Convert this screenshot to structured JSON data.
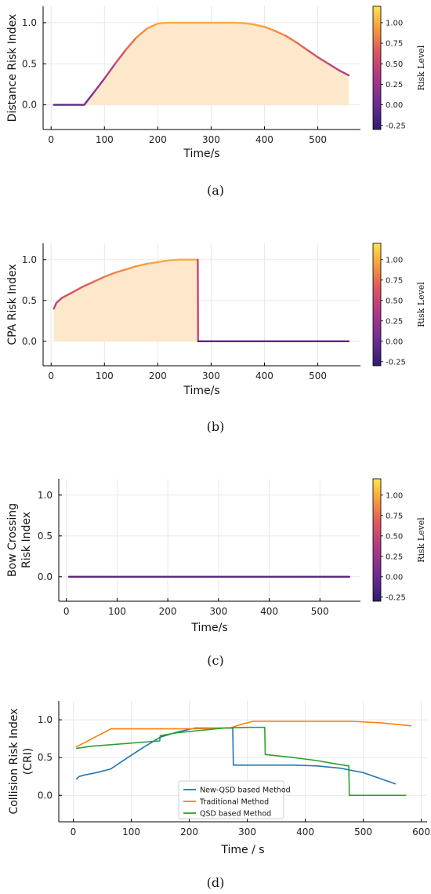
{
  "colors": {
    "fill_area": "#fde8cc",
    "new_qsd": "#1f77b4",
    "traditional": "#ff7f0e",
    "qsd": "#2ca02c",
    "flat_line": "#5b2a86",
    "colorbar": [
      "#2c1d6e",
      "#6a2c91",
      "#b23a86",
      "#e05a5a",
      "#f79a3d",
      "#fde44b"
    ]
  },
  "chart_data": [
    {
      "type": "line",
      "caption": "(a)",
      "ylabel": "Distance Risk Index",
      "xlabel": "Time/s",
      "x_ticks": [
        "0",
        "100",
        "200",
        "300",
        "400",
        "500"
      ],
      "y_ticks": [
        "0.0",
        "0.5",
        "1.0"
      ],
      "xlim": [
        -15,
        580
      ],
      "ylim": [
        -0.3,
        1.2
      ],
      "grid": true,
      "fill_under": true,
      "colorbar": {
        "label": "Risk Level",
        "ticks": [
          "1.00",
          "0.75",
          "0.50",
          "0.25",
          "0.00",
          "-0.25"
        ],
        "range": [
          -0.3,
          1.2
        ]
      },
      "x": [
        5,
        62,
        80,
        100,
        120,
        140,
        160,
        180,
        200,
        220,
        240,
        260,
        280,
        300,
        320,
        340,
        360,
        380,
        400,
        420,
        440,
        460,
        480,
        500,
        520,
        540,
        558
      ],
      "y": [
        0.0,
        0.0,
        0.15,
        0.32,
        0.5,
        0.67,
        0.82,
        0.93,
        0.99,
        1.0,
        1.0,
        1.0,
        1.0,
        1.0,
        1.0,
        1.0,
        0.995,
        0.98,
        0.95,
        0.9,
        0.84,
        0.76,
        0.67,
        0.58,
        0.5,
        0.42,
        0.36
      ]
    },
    {
      "type": "line",
      "caption": "(b)",
      "ylabel": "CPA Risk Index",
      "xlabel": "Time/s",
      "x_ticks": [
        "0",
        "100",
        "200",
        "300",
        "400",
        "500"
      ],
      "y_ticks": [
        "0.0",
        "0.5",
        "1.0"
      ],
      "xlim": [
        -15,
        580
      ],
      "ylim": [
        -0.3,
        1.2
      ],
      "grid": true,
      "fill_under": true,
      "colorbar": {
        "label": "Risk Level",
        "ticks": [
          "1.00",
          "0.75",
          "0.50",
          "0.25",
          "0.00",
          "-0.25"
        ],
        "range": [
          -0.3,
          1.2
        ]
      },
      "x": [
        5,
        10,
        20,
        40,
        60,
        80,
        100,
        120,
        140,
        160,
        180,
        200,
        220,
        240,
        260,
        275,
        275.5,
        300,
        400,
        500,
        558
      ],
      "y": [
        0.4,
        0.47,
        0.53,
        0.6,
        0.67,
        0.73,
        0.79,
        0.84,
        0.88,
        0.92,
        0.95,
        0.97,
        0.99,
        1.0,
        1.0,
        1.0,
        0.0,
        0.0,
        0.0,
        0.0,
        0.0
      ]
    },
    {
      "type": "line",
      "caption": "(c)",
      "ylabel": "Bow Crossing Risk Index",
      "ylabel_lines": [
        "Bow Crossing",
        "Risk Index"
      ],
      "xlabel": "Time/s",
      "x_ticks": [
        "0",
        "100",
        "200",
        "300",
        "400",
        "500"
      ],
      "y_ticks": [
        "0.0",
        "0.5",
        "1.0"
      ],
      "xlim": [
        -15,
        580
      ],
      "ylim": [
        -0.3,
        1.2
      ],
      "grid": true,
      "fill_under": false,
      "colorbar": {
        "label": "Risk Level",
        "ticks": [
          "1.00",
          "0.75",
          "0.50",
          "0.25",
          "0.00",
          "-0.25"
        ],
        "range": [
          -0.3,
          1.2
        ]
      },
      "x": [
        5,
        558
      ],
      "y": [
        0.0,
        0.0
      ]
    },
    {
      "type": "line",
      "caption": "(d)",
      "ylabel": "Collision Risk Index (CRI)",
      "ylabel_lines": [
        "Collision Risk Index",
        "(CRI)"
      ],
      "xlabel": "Time / s",
      "x_ticks": [
        "0",
        "100",
        "200",
        "300",
        "400",
        "500",
        "600"
      ],
      "y_ticks": [
        "0.0",
        "0.5",
        "1.0"
      ],
      "xlim": [
        -25,
        610
      ],
      "ylim": [
        -0.35,
        1.25
      ],
      "grid": true,
      "legend": "lower-center",
      "series": [
        {
          "name": "New-QSD based Method",
          "x": [
            5,
            10,
            20,
            40,
            65,
            90,
            120,
            150,
            180,
            210,
            240,
            270,
            275,
            276,
            300,
            350,
            380,
            420,
            460,
            500,
            530,
            556
          ],
          "y": [
            0.21,
            0.25,
            0.27,
            0.3,
            0.35,
            0.48,
            0.63,
            0.77,
            0.84,
            0.89,
            0.89,
            0.89,
            0.89,
            0.4,
            0.4,
            0.4,
            0.4,
            0.39,
            0.36,
            0.3,
            0.22,
            0.15
          ]
        },
        {
          "name": "Traditional Method",
          "x": [
            5,
            20,
            40,
            65,
            100,
            200,
            270,
            290,
            310,
            400,
            480,
            530,
            583
          ],
          "y": [
            0.64,
            0.7,
            0.78,
            0.88,
            0.88,
            0.88,
            0.89,
            0.94,
            0.98,
            0.98,
            0.98,
            0.96,
            0.92
          ]
        },
        {
          "name": "QSD based Method",
          "x": [
            5,
            30,
            80,
            130,
            149,
            150,
            180,
            220,
            260,
            300,
            330,
            331,
            380,
            420,
            450,
            475,
            476,
            520,
            574
          ],
          "y": [
            0.62,
            0.65,
            0.68,
            0.71,
            0.72,
            0.79,
            0.83,
            0.86,
            0.89,
            0.9,
            0.9,
            0.54,
            0.5,
            0.46,
            0.42,
            0.39,
            0.0,
            0.0,
            0.0
          ]
        }
      ]
    }
  ]
}
